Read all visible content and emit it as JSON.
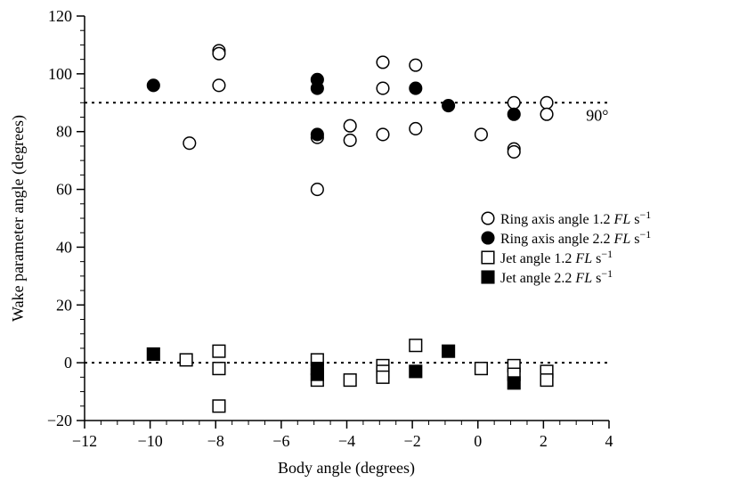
{
  "chart_data": {
    "type": "scatter",
    "xlabel": "Body angle (degrees)",
    "ylabel": "Wake parameter angle (degrees)",
    "xlim": [
      -12,
      4
    ],
    "ylim": [
      -20,
      120
    ],
    "xticks": [
      -12,
      -10,
      -8,
      -6,
      -4,
      -2,
      0,
      2,
      4
    ],
    "yticks": [
      -20,
      0,
      20,
      40,
      60,
      80,
      100,
      120
    ],
    "xtick_labels": [
      "−12",
      "−10",
      "−8",
      "−6",
      "−4",
      "−2",
      "0",
      "2",
      "4"
    ],
    "ytick_labels": [
      "−20",
      "0",
      "20",
      "40",
      "60",
      "80",
      "100",
      "120"
    ],
    "reference_lines": [
      {
        "y": 90,
        "label": "90°"
      },
      {
        "y": 0,
        "label": ""
      }
    ],
    "legend_placement": "right",
    "series": [
      {
        "name": "Ring axis angle 1.2 FL s−1",
        "name_parts": {
          "pre": "Ring axis angle 1.2 ",
          "italic": "FL",
          "post": " s",
          "sup": "−1"
        },
        "marker": "circle",
        "filled": false,
        "points": [
          [
            -8.8,
            76
          ],
          [
            -7.9,
            108
          ],
          [
            -7.9,
            107
          ],
          [
            -7.9,
            96
          ],
          [
            -4.9,
            78
          ],
          [
            -4.9,
            60
          ],
          [
            -3.9,
            82
          ],
          [
            -3.9,
            77
          ],
          [
            -2.9,
            104
          ],
          [
            -2.9,
            95
          ],
          [
            -2.9,
            79
          ],
          [
            -1.9,
            103
          ],
          [
            -1.9,
            81
          ],
          [
            0.1,
            79
          ],
          [
            1.1,
            90
          ],
          [
            1.1,
            74
          ],
          [
            1.1,
            73
          ],
          [
            2.1,
            90
          ],
          [
            2.1,
            86
          ]
        ]
      },
      {
        "name": "Ring axis angle 2.2 FL s−1",
        "name_parts": {
          "pre": "Ring axis angle 2.2 ",
          "italic": "FL",
          "post": " s",
          "sup": "−1"
        },
        "marker": "circle",
        "filled": true,
        "points": [
          [
            -9.9,
            96
          ],
          [
            -4.9,
            98
          ],
          [
            -4.9,
            95
          ],
          [
            -4.9,
            79
          ],
          [
            -1.9,
            95
          ],
          [
            -0.9,
            89
          ],
          [
            1.1,
            86
          ]
        ]
      },
      {
        "name": "Jet angle 1.2 FL s−1",
        "name_parts": {
          "pre": "Jet angle 1.2 ",
          "italic": "FL",
          "post": " s",
          "sup": "−1"
        },
        "marker": "square",
        "filled": false,
        "points": [
          [
            -8.9,
            1
          ],
          [
            -7.9,
            4
          ],
          [
            -7.9,
            -2
          ],
          [
            -7.9,
            -15
          ],
          [
            -4.9,
            1
          ],
          [
            -4.9,
            -6
          ],
          [
            -3.9,
            -6
          ],
          [
            -2.9,
            -1
          ],
          [
            -2.9,
            -3
          ],
          [
            -2.9,
            -5
          ],
          [
            -1.9,
            6
          ],
          [
            0.1,
            -2
          ],
          [
            1.1,
            -1
          ],
          [
            1.1,
            -4
          ],
          [
            2.1,
            -3
          ],
          [
            2.1,
            -6
          ]
        ]
      },
      {
        "name": "Jet angle 2.2 FL s−1",
        "name_parts": {
          "pre": "Jet angle 2.2 ",
          "italic": "FL",
          "post": " s",
          "sup": "−1"
        },
        "marker": "square",
        "filled": true,
        "points": [
          [
            -9.9,
            3
          ],
          [
            -4.9,
            -2
          ],
          [
            -4.9,
            -4
          ],
          [
            -1.9,
            -3
          ],
          [
            -0.9,
            4
          ],
          [
            1.1,
            -7
          ]
        ]
      }
    ]
  }
}
